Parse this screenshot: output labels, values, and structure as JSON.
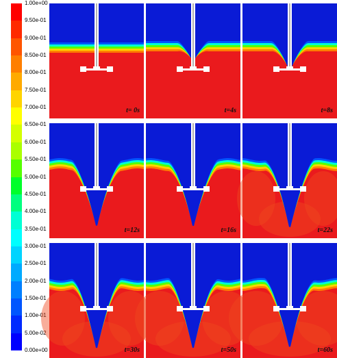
{
  "colorbar": {
    "labels": [
      "1.00e+00",
      "9.50e-01",
      "9.00e-01",
      "8.50e-01",
      "8.00e-01",
      "7.50e-01",
      "7.00e-01",
      "6.50e-01",
      "6.00e-01",
      "5.50e-01",
      "5.00e-01",
      "4.50e-01",
      "4.00e-01",
      "3.50e-01",
      "3.00e-01",
      "2.50e-01",
      "2.00e-01",
      "1.50e-01",
      "1.00e-01",
      "5.00e-02",
      "0.00e+00"
    ],
    "colors": [
      "#ff0000",
      "#ff2a00",
      "#ff5500",
      "#ff7f00",
      "#ffaa00",
      "#ffd400",
      "#ffff00",
      "#d4ff00",
      "#aaff00",
      "#55ff00",
      "#00ff2a",
      "#00ff7f",
      "#00ffd4",
      "#00ffff",
      "#00d4ff",
      "#00aaff",
      "#007fff",
      "#0055ff",
      "#002aff",
      "#0000ff"
    ]
  },
  "panels": [
    {
      "time": "t= 0s",
      "stage": 0
    },
    {
      "time": "t=4s",
      "stage": 1
    },
    {
      "time": "t=8s",
      "stage": 2
    },
    {
      "time": "t=12s",
      "stage": 3
    },
    {
      "time": "t=16s",
      "stage": 4
    },
    {
      "time": "t=22s",
      "stage": 5
    },
    {
      "time": "t=30s",
      "stage": 6
    },
    {
      "time": "t=50s",
      "stage": 7
    },
    {
      "time": "t=60s",
      "stage": 8
    }
  ],
  "theme": {
    "liquid": "#ea1a1d",
    "air": "#0a1bd6",
    "impeller": "#ffffff"
  }
}
